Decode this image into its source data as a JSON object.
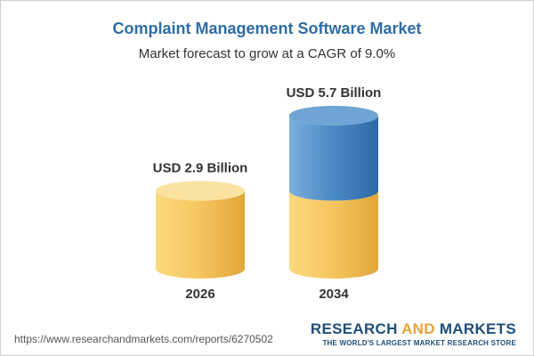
{
  "header": {
    "title": "Complaint Management Software Market",
    "subtitle": "Market forecast to grow at a CAGR of 9.0%"
  },
  "chart_data": {
    "type": "bar",
    "title": "Complaint Management Software Market",
    "subtitle": "Market forecast to grow at a CAGR of 9.0%",
    "categories": [
      "2026",
      "2034"
    ],
    "values": [
      2.9,
      5.7
    ],
    "data_labels": [
      "USD 2.9 Billion",
      "USD 5.7 Billion"
    ],
    "units": "USD Billion",
    "xlabel": "",
    "ylabel": "",
    "grid": false,
    "style": "3d-cylinder"
  },
  "footer": {
    "source_url": "https://www.researchandmarkets.com/reports/6270502",
    "brand_part1": "RESEARCH ",
    "brand_part2": "AND",
    "brand_part3": " MARKETS",
    "brand_tagline": "THE WORLD'S LARGEST MARKET RESEARCH STORE"
  },
  "colors": {
    "title": "#2e6da4",
    "gold_light": "#fbd97f",
    "gold_mid": "#f6c761",
    "gold_dark": "#e2a63b",
    "gold_top": "#fbe2a0",
    "blue_light": "#7ab0de",
    "blue_mid": "#4f8bc6",
    "blue_dark": "#2d69a5",
    "blue_top": "#6fa4d4"
  }
}
